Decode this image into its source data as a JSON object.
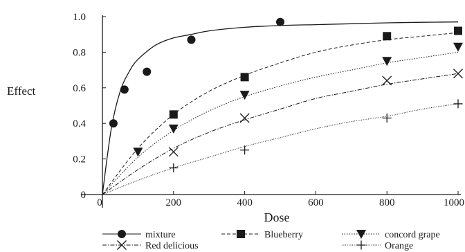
{
  "chart_data": {
    "type": "line",
    "title": "",
    "xlabel": "Dose",
    "ylabel": "Effect",
    "xlim": [
      0,
      1000
    ],
    "ylim": [
      0,
      1.0
    ],
    "x_ticks": [
      0,
      200,
      400,
      600,
      800,
      1000
    ],
    "x_tick_labels": [
      "0",
      "200",
      "400",
      "600",
      "800",
      "1000"
    ],
    "y_ticks": [
      0,
      0.2,
      0.4,
      0.6,
      0.8,
      1.0
    ],
    "y_tick_labels": [
      "0",
      "0.2",
      "0.4",
      "0.6",
      "0.8",
      "1.0"
    ],
    "grid": false,
    "legend_position": "bottom",
    "series": [
      {
        "name": "mixture",
        "marker": "circle",
        "line": "solid",
        "points": [
          [
            31,
            0.4
          ],
          [
            62,
            0.59
          ],
          [
            125,
            0.69
          ],
          [
            250,
            0.87
          ],
          [
            500,
            0.97
          ]
        ],
        "curve": [
          [
            0,
            0.0
          ],
          [
            25,
            0.37
          ],
          [
            50,
            0.58
          ],
          [
            75,
            0.69
          ],
          [
            100,
            0.76
          ],
          [
            150,
            0.84
          ],
          [
            200,
            0.88
          ],
          [
            250,
            0.9
          ],
          [
            300,
            0.92
          ],
          [
            400,
            0.94
          ],
          [
            500,
            0.95
          ],
          [
            600,
            0.955
          ],
          [
            700,
            0.96
          ],
          [
            800,
            0.965
          ],
          [
            900,
            0.968
          ],
          [
            1000,
            0.97
          ]
        ]
      },
      {
        "name": "Blueberry",
        "marker": "square",
        "line": "dashed",
        "points": [
          [
            200,
            0.45
          ],
          [
            400,
            0.66
          ],
          [
            800,
            0.89
          ],
          [
            1000,
            0.92
          ]
        ],
        "curve": [
          [
            0,
            0.0
          ],
          [
            100,
            0.26
          ],
          [
            200,
            0.45
          ],
          [
            300,
            0.58
          ],
          [
            400,
            0.67
          ],
          [
            500,
            0.74
          ],
          [
            600,
            0.8
          ],
          [
            700,
            0.84
          ],
          [
            800,
            0.87
          ],
          [
            900,
            0.89
          ],
          [
            1000,
            0.91
          ]
        ]
      },
      {
        "name": "concord grape",
        "marker": "triangle-down",
        "line": "dotted",
        "points": [
          [
            100,
            0.24
          ],
          [
            200,
            0.37
          ],
          [
            400,
            0.56
          ],
          [
            800,
            0.75
          ],
          [
            1000,
            0.83
          ]
        ],
        "curve": [
          [
            0,
            0.0
          ],
          [
            100,
            0.21
          ],
          [
            200,
            0.36
          ],
          [
            300,
            0.47
          ],
          [
            400,
            0.55
          ],
          [
            500,
            0.61
          ],
          [
            600,
            0.66
          ],
          [
            700,
            0.7
          ],
          [
            800,
            0.74
          ],
          [
            900,
            0.77
          ],
          [
            1000,
            0.8
          ]
        ]
      },
      {
        "name": "Red delicious",
        "marker": "x",
        "line": "dashdot",
        "points": [
          [
            200,
            0.24
          ],
          [
            400,
            0.43
          ],
          [
            800,
            0.64
          ],
          [
            1000,
            0.68
          ]
        ],
        "curve": [
          [
            0,
            0.0
          ],
          [
            100,
            0.14
          ],
          [
            200,
            0.26
          ],
          [
            300,
            0.35
          ],
          [
            400,
            0.42
          ],
          [
            500,
            0.48
          ],
          [
            600,
            0.54
          ],
          [
            700,
            0.58
          ],
          [
            800,
            0.62
          ],
          [
            900,
            0.65
          ],
          [
            1000,
            0.68
          ]
        ]
      },
      {
        "name": "Orange",
        "marker": "plus",
        "line": "dense-dotted",
        "points": [
          [
            200,
            0.15
          ],
          [
            400,
            0.25
          ],
          [
            800,
            0.43
          ],
          [
            1000,
            0.51
          ]
        ],
        "curve": [
          [
            0,
            0.0
          ],
          [
            100,
            0.08
          ],
          [
            200,
            0.15
          ],
          [
            300,
            0.21
          ],
          [
            400,
            0.27
          ],
          [
            500,
            0.32
          ],
          [
            600,
            0.37
          ],
          [
            700,
            0.41
          ],
          [
            800,
            0.44
          ],
          [
            900,
            0.48
          ],
          [
            1000,
            0.51
          ]
        ]
      }
    ]
  },
  "colors": {
    "ink": "#1a1a1a",
    "background": "#ffffff"
  }
}
